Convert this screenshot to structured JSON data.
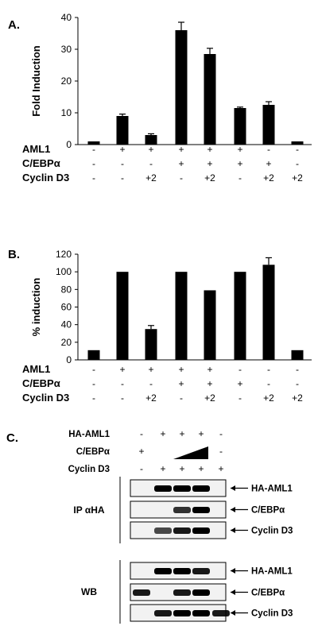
{
  "chart_data": [
    {
      "type": "bar",
      "panel_label": "A.",
      "ylabel": "Fold Induction",
      "ylim": [
        0,
        40
      ],
      "yticks": [
        0,
        10,
        20,
        30,
        40
      ],
      "values": [
        1.0,
        9.0,
        3.0,
        36.0,
        28.5,
        11.5,
        12.5,
        1.0
      ],
      "errors": [
        0,
        0.6,
        0.4,
        2.5,
        1.8,
        0.3,
        1.0,
        0
      ],
      "conditions": [
        {
          "label": "AML1",
          "values": [
            "-",
            "+",
            "+",
            "+",
            "+",
            "+",
            "-",
            "-"
          ]
        },
        {
          "label": "C/EBPα",
          "values": [
            "-",
            "-",
            "-",
            "+",
            "+",
            "+",
            "+",
            "-"
          ]
        },
        {
          "label": "Cyclin D3",
          "values": [
            "-",
            "-",
            "+2",
            "-",
            "+2",
            "-",
            "+2",
            "+2"
          ]
        }
      ]
    },
    {
      "type": "bar",
      "panel_label": "B.",
      "ylabel": "% induction",
      "ylim": [
        0,
        120
      ],
      "yticks": [
        0,
        20,
        40,
        60,
        80,
        100,
        120
      ],
      "values": [
        11,
        100,
        35,
        100,
        79,
        100,
        108,
        11
      ],
      "errors": [
        0,
        0,
        4,
        0,
        0,
        0,
        8,
        0
      ],
      "conditions": [
        {
          "label": "AML1",
          "values": [
            "-",
            "+",
            "+",
            "+",
            "+",
            "-",
            "-",
            "-"
          ]
        },
        {
          "label": "C/EBPα",
          "values": [
            "-",
            "-",
            "-",
            "+",
            "+",
            "+",
            "-",
            "-"
          ]
        },
        {
          "label": "Cyclin D3",
          "values": [
            "-",
            "-",
            "+2",
            "-",
            "+2",
            "-",
            "+2",
            "+2"
          ]
        }
      ]
    }
  ],
  "panel_c": {
    "panel_label": "C.",
    "conditions": [
      {
        "label": "HA-AML1",
        "values": [
          "-",
          "+",
          "+",
          "+",
          "-"
        ]
      },
      {
        "label": "C/EBPα",
        "values": [
          "+",
          "",
          "",
          "",
          "-"
        ]
      },
      {
        "label": "Cyclin D3",
        "values": [
          "-",
          "+",
          "+",
          "+",
          "+"
        ]
      }
    ],
    "groups": [
      {
        "label": "IP αHA",
        "blots": [
          "HA-AML1",
          "C/EBPα",
          "Cyclin D3"
        ]
      },
      {
        "label": "WB",
        "blots": [
          "HA-AML1",
          "C/EBPα",
          "Cyclin D3"
        ]
      }
    ],
    "band_intensity": [
      [
        0,
        1,
        1,
        1,
        0
      ],
      [
        0,
        0,
        0.8,
        1,
        0
      ],
      [
        0,
        0.7,
        0.9,
        1,
        0
      ],
      [
        0,
        1,
        1,
        0.9,
        0
      ],
      [
        0.9,
        0,
        0.9,
        1,
        0
      ],
      [
        0,
        0.9,
        1,
        1,
        0.9
      ]
    ]
  }
}
